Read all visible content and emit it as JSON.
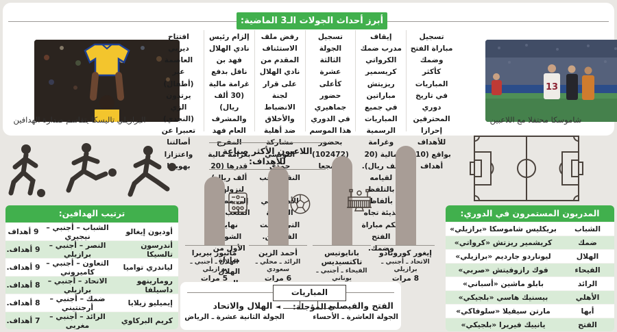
{
  "header": {
    "title": "أبرز أحداث الجولات الـ3 الماضية:"
  },
  "top_section": {
    "photos": {
      "right": {
        "caption": "شاموسكا محتفلا مع اللاعبين",
        "jersey_number": "13"
      },
      "left": {
        "caption": "البرازيلي تاليسكا يتقاسم صدارة الهدافين"
      }
    },
    "news_items": [
      "تسجيل مباراة الفتح وضمك كأكثر المباريات في تاريخ دوري المحترفين إحرازا للأهداف بواقع (10) أهداف",
      "إيقاف مدرب ضمك الكرواتي كريسمير ريزيتش مباراتين في جميع المباريات الرسمية وغرامة مالية (20 ألف ريال). لقيامه بالتلفظ بألفاظ بذيئة تجاه حكم مباراة الفتح وضمك.",
      "تسجيل الجولة الثالثة عشرة كأعلى حضور جماهيري في الدوري هذا الموسم بحضور (102472) مشجعا",
      "رفض ملف الاستئناف المقدم من نادي الهلال على قرار لجنة الانضباط والأخلاق ضد أهلية مشاركة التونسي حمدي النقاز لاعب فريق الأهلي في المباراة التي جمعت الفريقين.",
      "إلزام رئيس نادي الهلال فهد بن نافل بدفع غرامة مالية (30 ألف ريال) والمشرف العام فهد المفرج بغرامة مالية قدرها (20 ألف ريال) لنزولهما إلى مضمار الملعب قبل نهاية الشوط الأول من مباراة الهلال والنصر.",
      "افتتاح ديربي العاصمة عبر (أطفال) يرتدون الزي (النجدي) تعبيرا عن أصالتنا واعتزازا بهويتنا"
    ]
  },
  "chart_data": {
    "type": "bar",
    "title": "اللاعبون الأكثر صناعة للأهداف:",
    "orientation": "rtl-highest-first",
    "grid": false,
    "legend": false,
    "categories": [
      "إيغور كورونادو",
      "بانايوتيس تاكتسيديس",
      "أحمد الزين",
      "ماثيوز بيريرا"
    ],
    "details": [
      "الاتحاد ـ أجنبي ـ برازيلي",
      "الفيحاء ـ أجنبي ـ يوناني",
      "الرائد ـ محلي ـ سعودي",
      "الهلال ـ أجنبي ـ برازيلي"
    ],
    "values": [
      8,
      7,
      6,
      5
    ],
    "value_labels": [
      "8 مرات",
      "7 مرات",
      "6 مرات",
      "5 مرات"
    ],
    "bar_color": "#a89d96"
  },
  "scorers_table": {
    "title": "ترتيب الهدافين:",
    "rows": [
      {
        "name": "أوديون إيغالو",
        "info": "الشباب – أجنبي – نيجيري",
        "goals": "9 أهداف"
      },
      {
        "name": "أندرسون تالسيكا",
        "info": "النصر – أجنبي – برازيلي",
        "goals": "9 أهداف."
      },
      {
        "name": "لياندري تواميا",
        "info": "التعاون – أجنبي – كاميروني",
        "goals": "9 أهداف."
      },
      {
        "name": "رومارينهو داسيلفا",
        "info": "الاتحاد – أجنبي – برازيلي",
        "goals": "8 أهداف."
      },
      {
        "name": "إيميليو زيلايا",
        "info": "ضمك – أجنبي – أرجنتيني",
        "goals": "8 أهداف."
      },
      {
        "name": "كريم البركاوي",
        "info": "الرائد – أجنبي – مغربي",
        "goals": "7 أهداف."
      }
    ]
  },
  "coaches_table": {
    "title": "المدربون المستمرون في الدوري:",
    "rows": [
      {
        "team": "الشباب",
        "coach": "بريكليس شاموسكا «برازيلي»"
      },
      {
        "team": "ضمك",
        "coach": "كريشمير ريزتش «كرواتي»"
      },
      {
        "team": "الهلال",
        "coach": "ليوناردو جارديم «برازيلي»"
      },
      {
        "team": "الفيحاء",
        "coach": "فوك رازوفيتش «صربي»"
      },
      {
        "team": "الرائد",
        "coach": "بابلو ماشين «أسباني»"
      },
      {
        "team": "الأهلي",
        "coach": "بيسنيك هاسي «بلجيكي»"
      },
      {
        "team": "أبها",
        "coach": "مارتن سيفيلا «سلوفاكي»"
      },
      {
        "team": "الفتح",
        "coach": "يانييك فيريرا «بلجيكي»"
      }
    ]
  },
  "postponed_matches": {
    "title": "المباريات المؤجلة:",
    "right": {
      "teams": "الفتح والفيصلي",
      "round": "الجولة العاشرة ـ الأحساء"
    },
    "left": {
      "teams": "الهلال والاتحاد",
      "round": "الجولة الثانية عشرة ـ الرياض"
    },
    "arrow_right": "►",
    "arrow_left": "◄"
  },
  "icons": [
    "tactics-board-icon",
    "soccer-ball-icon",
    "stadium-icon",
    "football-pitch-icon",
    "players-silhouettes"
  ],
  "colors": {
    "accent_green": "#41b04d",
    "row_green": "#d9ebd7",
    "bar_taupe": "#a89d96",
    "page_bg": "#e9e7e3",
    "line_dark": "#4a423c"
  }
}
